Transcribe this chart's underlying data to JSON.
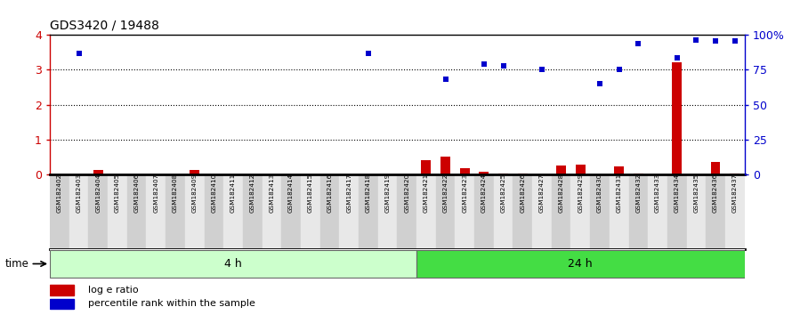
{
  "title": "GDS3420 / 19488",
  "samples": [
    "GSM182402",
    "GSM182403",
    "GSM182404",
    "GSM182405",
    "GSM182406",
    "GSM182407",
    "GSM182408",
    "GSM182409",
    "GSM182410",
    "GSM182411",
    "GSM182412",
    "GSM182413",
    "GSM182414",
    "GSM182415",
    "GSM182416",
    "GSM182417",
    "GSM182418",
    "GSM182419",
    "GSM182420",
    "GSM182421",
    "GSM182422",
    "GSM182423",
    "GSM182424",
    "GSM182425",
    "GSM182426",
    "GSM182427",
    "GSM182428",
    "GSM182429",
    "GSM182430",
    "GSM182431",
    "GSM182432",
    "GSM182433",
    "GSM182434",
    "GSM182435",
    "GSM182436",
    "GSM182437"
  ],
  "log_e_ratio": [
    0.0,
    0.0,
    0.13,
    0.0,
    0.0,
    0.0,
    0.0,
    0.13,
    0.0,
    0.0,
    0.0,
    0.0,
    0.0,
    0.0,
    0.0,
    0.0,
    0.0,
    0.0,
    0.0,
    0.42,
    0.52,
    0.18,
    0.08,
    0.05,
    0.04,
    0.02,
    0.26,
    0.28,
    0.02,
    0.24,
    0.04,
    0.0,
    3.22,
    0.0,
    0.38,
    0.05
  ],
  "percentile_rank": [
    null,
    3.47,
    null,
    null,
    null,
    null,
    null,
    null,
    null,
    null,
    null,
    null,
    null,
    null,
    null,
    null,
    3.47,
    null,
    null,
    null,
    2.72,
    null,
    3.15,
    3.1,
    null,
    3.0,
    null,
    null,
    2.6,
    3.0,
    3.75,
    null,
    3.35,
    3.85,
    3.83,
    3.83
  ],
  "group_4h_count": 19,
  "bar_color": "#cc0000",
  "scatter_color": "#0000cc",
  "group_4h_color": "#ccffcc",
  "group_24h_color": "#44dd44",
  "yticks_left": [
    0,
    1,
    2,
    3,
    4
  ],
  "yticks_right": [
    0,
    25,
    50,
    75,
    100
  ],
  "ytick_labels_right": [
    "0",
    "25",
    "50",
    "75",
    "100%"
  ],
  "legend_red": "log e ratio",
  "legend_blue": "percentile rank within the sample",
  "label_4h": "4 h",
  "label_24h": "24 h",
  "time_label": "time"
}
